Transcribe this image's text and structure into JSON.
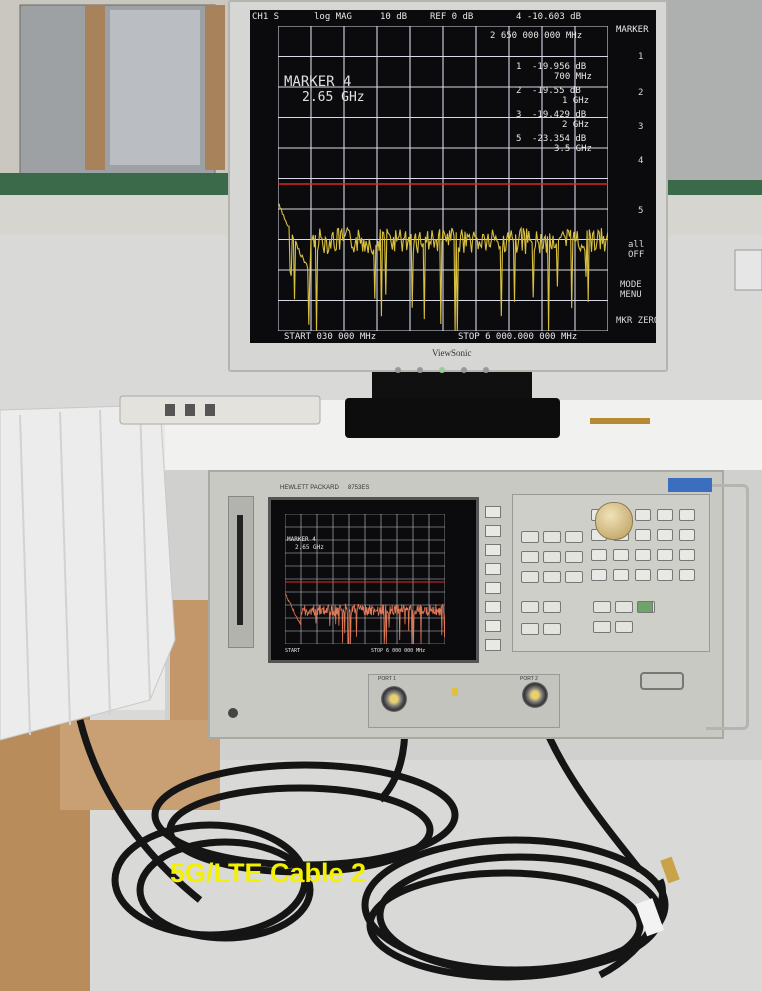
{
  "monitor": {
    "header": {
      "channel": "CH1 S",
      "format": "log MAG",
      "scale": "10 dB",
      "reference": "REF 0 dB",
      "marker_readout": "4 -10.603 dB",
      "marker_freq": "2 650 000 000 MHz",
      "menu_title": "MARKER"
    },
    "active_marker": {
      "label": "MARKER 4",
      "freq": "2.65 GHz"
    },
    "marker_list": [
      {
        "index": "1",
        "value": "-19.956 dB",
        "freq": "700 MHz"
      },
      {
        "index": "2",
        "value": "-19.55 dB",
        "freq": "1 GHz"
      },
      {
        "index": "3",
        "value": "-19.429 dB",
        "freq": "2 GHz"
      },
      {
        "index": "5",
        "value": "-23.354 dB",
        "freq": "3.5 GHz"
      }
    ],
    "footer": {
      "start": "START   030 000 MHz",
      "stop": "STOP 6 000.000 000 MHz"
    },
    "softkeys": [
      "1",
      "2",
      "3",
      "4",
      "5",
      "all OFF",
      "MODE MENU",
      "MKR ZERO"
    ],
    "brand": "ViewSonic"
  },
  "analyzer": {
    "brand": "HEWLETT PACKARD",
    "model": "8753ES",
    "screen_marker": {
      "label": "MARKER 4",
      "freq": "2.65 GHz"
    },
    "screen_footer": {
      "start": "START",
      "stop": "STOP 6 000 000 MHz"
    },
    "port_labels": [
      "PORT 1",
      "PORT 2"
    ]
  },
  "caption": "5G/LTE Cable 2",
  "colors": {
    "screen_bg": "#0b0b0d",
    "grid": "#d8d8e8",
    "trace": "#d8c040",
    "ref_line": "#e0242a",
    "caption": "#f3f000"
  }
}
